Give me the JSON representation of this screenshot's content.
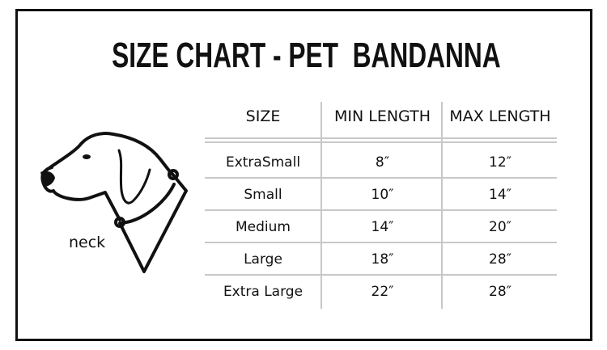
{
  "title": "SIZE CHART - PET  BANDANNA",
  "illustration": {
    "icon": "dog-head-with-bandanna-icon",
    "label": "neck"
  },
  "table": {
    "headers": [
      "SIZE",
      "MIN LENGTH",
      "MAX LENGTH"
    ],
    "rows": [
      [
        "ExtraSmall",
        "8″",
        "12″"
      ],
      [
        "Small",
        "10″",
        "14″"
      ],
      [
        "Medium",
        "14″",
        "20″"
      ],
      [
        "Large",
        "18″",
        "28″"
      ],
      [
        "Extra Large",
        "22″",
        "28″"
      ]
    ]
  }
}
